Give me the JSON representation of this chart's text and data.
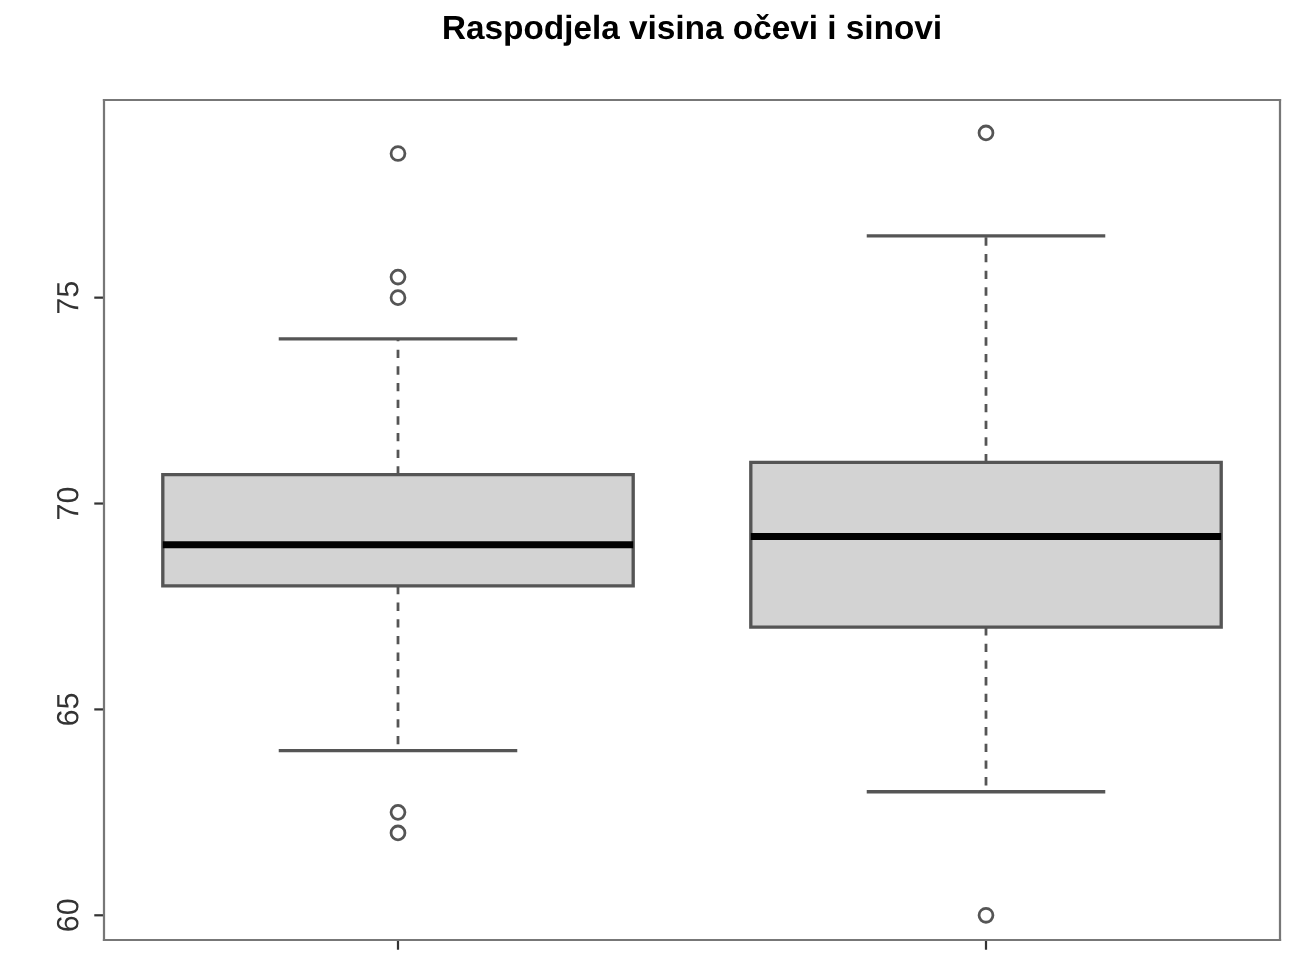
{
  "chart_data": {
    "type": "box",
    "title": "Raspodjela visina očevi i sinovi",
    "categories": [
      null,
      null
    ],
    "boxes": [
      {
        "low": 64.0,
        "q1": 68.0,
        "median": 69.0,
        "q3": 70.7,
        "high": 74.0,
        "outliers": [
          78.5,
          75.5,
          75.0,
          62.5,
          62.0
        ]
      },
      {
        "low": 63.0,
        "q1": 67.0,
        "median": 69.2,
        "q3": 71.0,
        "high": 76.5,
        "outliers": [
          79.0,
          60.0
        ]
      }
    ],
    "color": "#d3d3d3",
    "ylim": [
      59.4,
      79.8
    ],
    "yticks": [
      60,
      65,
      70,
      75
    ],
    "grid": false,
    "legend": false
  }
}
